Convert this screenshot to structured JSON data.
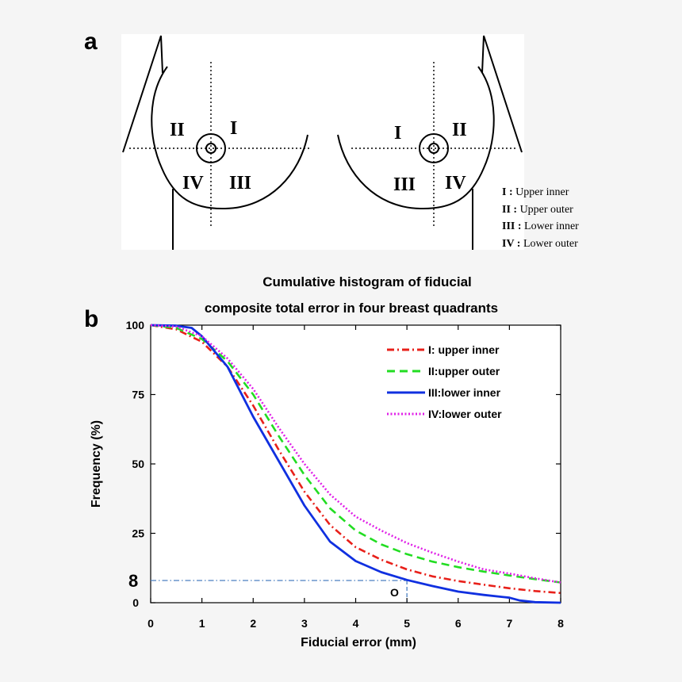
{
  "panel_a": {
    "letter": "a",
    "left_quadrants": [
      "I",
      "II",
      "III",
      "IV"
    ],
    "right_quadrants": [
      "I",
      "II",
      "III",
      "IV"
    ],
    "key": [
      {
        "numeral": "I :",
        "text": "Upper inner"
      },
      {
        "numeral": "II :",
        "text": "Upper outer"
      },
      {
        "numeral": "III :",
        "text": "Lower inner"
      },
      {
        "numeral": "IV :",
        "text": "Lower outer"
      }
    ]
  },
  "panel_b": {
    "letter": "b",
    "highlight_value_label": "8",
    "highlight_point_label": "O"
  },
  "chart_data": {
    "type": "line",
    "title_lines": [
      "Cumulative histogram of fiducial",
      "composite total error in four breast quadrants"
    ],
    "xlabel": "Fiducial error (mm)",
    "ylabel": "Frequency (%)",
    "xlim": [
      0,
      8
    ],
    "ylim": [
      0,
      100
    ],
    "xticks": [
      0,
      1,
      2,
      3,
      4,
      5,
      6,
      7,
      8
    ],
    "yticks": [
      0,
      25,
      50,
      75,
      100
    ],
    "legend_position": "top-right",
    "colors": {
      "I": "#e8201a",
      "II": "#22dd22",
      "III": "#1030e0",
      "IV": "#e020e8",
      "guide": "#4a7fc0"
    },
    "guide": {
      "x": 5,
      "y": 8
    },
    "series": [
      {
        "name": "I: upper inner",
        "style": "dash-dot",
        "x": [
          0,
          0.5,
          1,
          1.5,
          2,
          2.5,
          3,
          3.5,
          4,
          4.5,
          5,
          5.5,
          6,
          6.5,
          7,
          7.5,
          8
        ],
        "y": [
          100,
          98.5,
          94,
          85,
          71,
          55,
          40,
          28,
          20,
          15.5,
          12,
          9.5,
          7.8,
          6.5,
          5.2,
          4.2,
          3.5
        ]
      },
      {
        "name": "II:upper outer",
        "style": "dashed",
        "x": [
          0,
          0.5,
          1,
          1.5,
          2,
          2.5,
          3,
          3.5,
          4,
          4.5,
          5,
          5.5,
          6,
          6.5,
          7,
          7.5,
          8
        ],
        "y": [
          100,
          99,
          95,
          87,
          75,
          60,
          46,
          34,
          26,
          21,
          17.5,
          14.8,
          12.8,
          11.2,
          9.8,
          8.5,
          7.3
        ]
      },
      {
        "name": "III:lower inner",
        "style": "solid",
        "x": [
          0,
          0.5,
          0.8,
          1,
          1.5,
          2,
          2.5,
          3,
          3.5,
          4,
          4.5,
          5,
          5.5,
          6,
          6.5,
          7,
          7.2,
          7.5,
          8
        ],
        "y": [
          100,
          99.8,
          99,
          96,
          85,
          67,
          51,
          35,
          22,
          15,
          11,
          8.2,
          6,
          4,
          2.8,
          1.8,
          0.8,
          0.2,
          0
        ]
      },
      {
        "name": "IV:lower outer",
        "style": "dotted",
        "x": [
          0,
          0.5,
          1,
          1.5,
          2,
          2.5,
          3,
          3.5,
          4,
          4.5,
          5,
          5.5,
          6,
          6.5,
          7,
          7.5,
          8
        ],
        "y": [
          100,
          99.5,
          96,
          88,
          77,
          63,
          50,
          39,
          31,
          26,
          21.5,
          18,
          14.8,
          12,
          10.5,
          8.8,
          7.3
        ]
      }
    ]
  }
}
